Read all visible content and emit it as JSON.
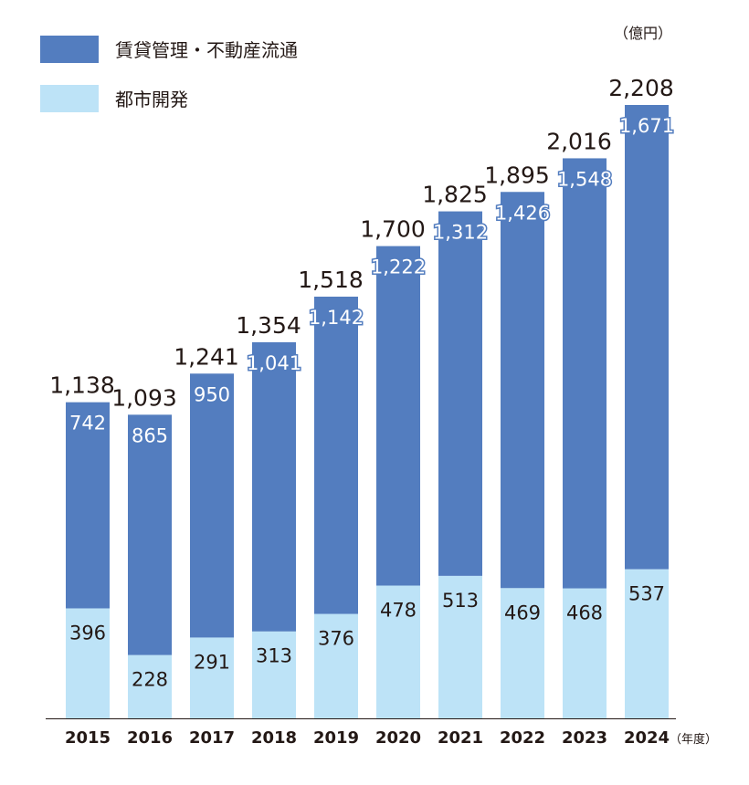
{
  "chart_data": {
    "type": "bar",
    "stacked": true,
    "unit_label": "（億円）",
    "x_unit_label": "（年度）",
    "categories": [
      "2015",
      "2016",
      "2017",
      "2018",
      "2019",
      "2020",
      "2021",
      "2022",
      "2023",
      "2024"
    ],
    "series": [
      {
        "name": "都市開発",
        "color": "#bde3f7",
        "values": [
          396,
          228,
          291,
          313,
          376,
          478,
          513,
          469,
          468,
          537
        ]
      },
      {
        "name": "賃貸管理・不動産流通",
        "color": "#537dbf",
        "values": [
          742,
          865,
          950,
          1041,
          1142,
          1222,
          1312,
          1426,
          1548,
          1671
        ]
      }
    ],
    "totals": [
      1138,
      1093,
      1241,
      1354,
      1518,
      1700,
      1825,
      1895,
      2016,
      2208
    ],
    "ylim": [
      0,
      2208
    ],
    "legend": "top-left",
    "grid": false
  }
}
